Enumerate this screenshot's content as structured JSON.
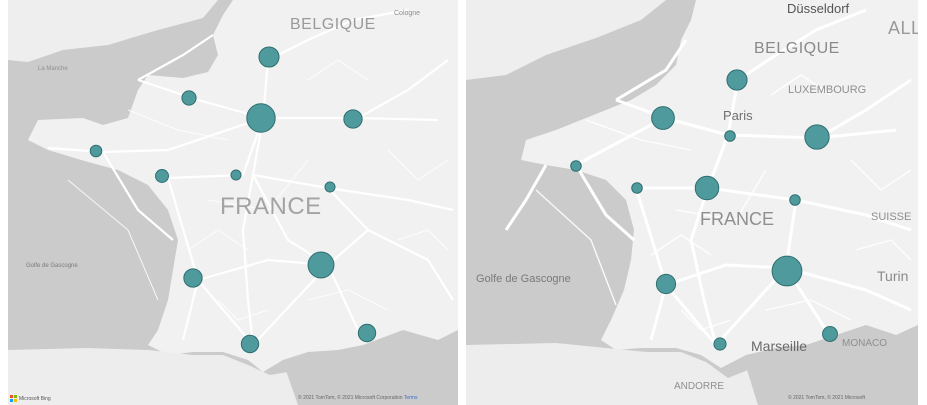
{
  "left_map": {
    "labels": {
      "country_belgique": "BELGIQUE",
      "country_france": "FRANCE",
      "sea_gascogne": "Golfe de Gascogne",
      "cologne": "Cologne",
      "la_manche": "La Manche"
    },
    "attribution": "© 2021 TomTom, © 2021 Microsoft Corporation",
    "terms_label": "Terms",
    "logo_label": "Microsoft Bing"
  },
  "right_map": {
    "labels": {
      "city_dusseldorf": "Düsseldorf",
      "country_belgique": "BELGIQUE",
      "country_partial_all": "ALL",
      "country_luxembourg": "LUXEMBOURG",
      "city_paris": "Paris",
      "country_france": "FRANCE",
      "sea_gascogne": "Golfe de Gascogne",
      "country_suisse": "SUISSE",
      "city_turin": "Turin",
      "city_marseille": "Marseille",
      "country_monaco": "MONACO",
      "country_andorre": "ANDORRE"
    },
    "attribution": "© 2021 TomTom, © 2021 Microsoft"
  },
  "colors": {
    "bubble_fill": "#4f9a9c",
    "bubble_stroke": "#2f6e70",
    "land": "#f2f2f2",
    "sea": "#c9c9c9",
    "roads": "#ffffff"
  },
  "bubble_data_left": [
    {
      "value": 6
    },
    {
      "value": 3
    },
    {
      "value": 12
    },
    {
      "value": 5
    },
    {
      "value": 2
    },
    {
      "value": 2.5
    },
    {
      "value": 1.5
    },
    {
      "value": 1.5
    },
    {
      "value": 5
    },
    {
      "value": 10
    },
    {
      "value": 4.5
    },
    {
      "value": 4.5
    }
  ],
  "bubble_data_right": [
    {
      "value": 5.5
    },
    {
      "value": 7
    },
    {
      "value": 1.5
    },
    {
      "value": 8
    },
    {
      "value": 1.5
    },
    {
      "value": 1.5
    },
    {
      "value": 7.5
    },
    {
      "value": 1.5
    },
    {
      "value": 5
    },
    {
      "value": 12
    },
    {
      "value": 3
    },
    {
      "value": 2
    }
  ]
}
